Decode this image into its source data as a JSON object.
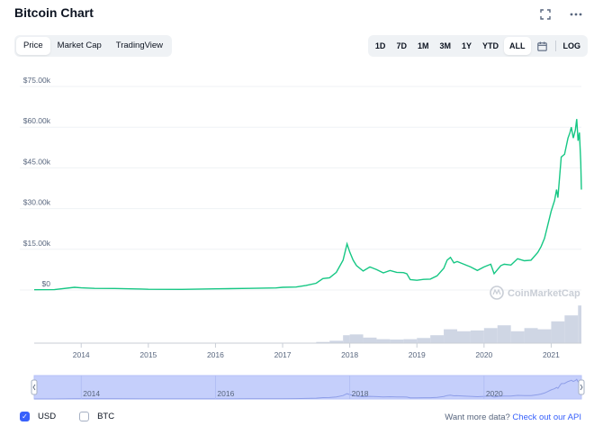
{
  "header": {
    "title": "Bitcoin Chart",
    "icons": [
      "fullscreen-icon",
      "more-options-icon"
    ]
  },
  "tabs": [
    {
      "label": "Price",
      "active": true
    },
    {
      "label": "Market Cap",
      "active": false
    },
    {
      "label": "TradingView",
      "active": false
    }
  ],
  "ranges": [
    {
      "label": "1D",
      "active": false
    },
    {
      "label": "7D",
      "active": false
    },
    {
      "label": "1M",
      "active": false
    },
    {
      "label": "3M",
      "active": false
    },
    {
      "label": "1Y",
      "active": false
    },
    {
      "label": "YTD",
      "active": false
    },
    {
      "label": "ALL",
      "active": true
    }
  ],
  "range_scale_label": "LOG",
  "watermark": "CoinMarketCap",
  "footer": {
    "usd_label": "USD",
    "usd_checked": true,
    "btc_label": "BTC",
    "btc_checked": false,
    "api_prefix": "Want more data? ",
    "api_link": "Check out our API"
  },
  "colors": {
    "line": "#16c784",
    "volume": "#cfd6e4",
    "navigator_fill": "#c5cffb",
    "accent": "#3861fb"
  },
  "chart_data": {
    "type": "line",
    "ylim": [
      0,
      75000
    ],
    "yticks": [
      "$0",
      "$15.00k",
      "$30.00k",
      "$45.00k",
      "$60.00k",
      "$75.00k"
    ],
    "ytick_values": [
      0,
      15000,
      30000,
      45000,
      60000,
      75000
    ],
    "xticks": [
      "2014",
      "2015",
      "2016",
      "2017",
      "2018",
      "2019",
      "2020",
      "2021"
    ],
    "xtick_values": [
      2014,
      2015,
      2016,
      2017,
      2018,
      2019,
      2020,
      2021
    ],
    "xlim": [
      2013.3,
      2021.45
    ],
    "navigator_ticks": [
      "2014",
      "2016",
      "2018",
      "2020"
    ],
    "navigator_tick_values": [
      2014,
      2016,
      2018,
      2020
    ],
    "series": [
      {
        "x": [
          2013.3,
          2013.6,
          2013.9,
          2014.0,
          2014.2,
          2014.5,
          2014.9,
          2015.0,
          2015.5,
          2015.9,
          2016.0,
          2016.5,
          2016.9,
          2017.0,
          2017.2,
          2017.35,
          2017.5,
          2017.6,
          2017.7,
          2017.8,
          2017.9,
          2017.96,
          2018.0,
          2018.05,
          2018.1,
          2018.2,
          2018.3,
          2018.4,
          2018.5,
          2018.6,
          2018.7,
          2018.8,
          2018.85,
          2018.9,
          2019.0,
          2019.1,
          2019.2,
          2019.3,
          2019.4,
          2019.45,
          2019.5,
          2019.55,
          2019.6,
          2019.7,
          2019.8,
          2019.9,
          2020.0,
          2020.1,
          2020.15,
          2020.2,
          2020.25,
          2020.3,
          2020.4,
          2020.5,
          2020.6,
          2020.7,
          2020.8,
          2020.85,
          2020.9,
          2020.95,
          2021.0,
          2021.05,
          2021.08,
          2021.1,
          2021.15,
          2021.2,
          2021.25,
          2021.28,
          2021.3,
          2021.33,
          2021.36,
          2021.38,
          2021.4,
          2021.42,
          2021.44,
          2021.45
        ],
        "y": [
          100,
          130,
          1000,
          800,
          600,
          550,
          380,
          250,
          240,
          400,
          430,
          600,
          750,
          1000,
          1100,
          1700,
          2500,
          4200,
          4500,
          6500,
          11000,
          17000,
          14000,
          11000,
          9000,
          7000,
          8500,
          7500,
          6300,
          7200,
          6500,
          6400,
          6000,
          3800,
          3600,
          3900,
          4000,
          5200,
          8000,
          11000,
          12000,
          10000,
          10500,
          9500,
          8500,
          7200,
          8500,
          9500,
          6000,
          7500,
          9000,
          9500,
          9200,
          11500,
          10800,
          11000,
          13800,
          16000,
          19000,
          24000,
          29000,
          33000,
          37000,
          34000,
          49000,
          50000,
          56000,
          58000,
          60000,
          56000,
          59000,
          63000,
          55000,
          58000,
          47000,
          37000
        ]
      }
    ],
    "volume": {
      "x": [
        2017.5,
        2017.7,
        2017.9,
        2018.0,
        2018.2,
        2018.4,
        2018.6,
        2018.8,
        2019.0,
        2019.2,
        2019.4,
        2019.6,
        2019.8,
        2020.0,
        2020.2,
        2020.4,
        2020.6,
        2020.8,
        2021.0,
        2021.2,
        2021.4
      ],
      "y": [
        0.03,
        0.06,
        0.2,
        0.22,
        0.14,
        0.1,
        0.09,
        0.1,
        0.13,
        0.2,
        0.35,
        0.3,
        0.32,
        0.38,
        0.45,
        0.3,
        0.38,
        0.35,
        0.55,
        0.7,
        0.95
      ]
    }
  }
}
